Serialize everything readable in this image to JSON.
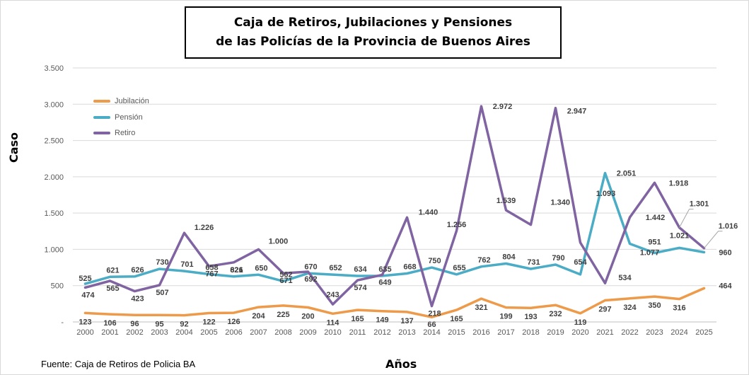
{
  "title": {
    "line1": "Caja de Retiros, Jubilaciones y Pensiones",
    "line2": "de las Policías de la Provincia de Buenos Aires"
  },
  "source": "Fuente: Caja de Retiros de Policia BA",
  "chart_data": {
    "type": "line",
    "title": "Caja de Retiros, Jubilaciones y Pensiones de las Policías de la Provincia de Buenos Aires",
    "xlabel": "Años",
    "ylabel": "Caso",
    "ylim": [
      0,
      3500
    ],
    "yticks": [
      0,
      500,
      1000,
      1500,
      2000,
      2500,
      3000,
      3500
    ],
    "ytick_labels": [
      "-",
      "500",
      "1.000",
      "1.500",
      "2.000",
      "2.500",
      "3.000",
      "3.500"
    ],
    "grid": true,
    "legend_position": "top-left",
    "categories": [
      "2000",
      "2001",
      "2002",
      "2003",
      "2004",
      "2005",
      "2006",
      "2007",
      "2008",
      "2009",
      "2010",
      "2011",
      "2012",
      "2013",
      "2014",
      "2015",
      "2016",
      "2017",
      "2018",
      "2019",
      "2020",
      "2021",
      "2022",
      "2023",
      "2024",
      "2025"
    ],
    "series": [
      {
        "name": "Jubilación",
        "color": "#ed9b4a",
        "values": [
          123,
          106,
          96,
          95,
          92,
          122,
          126,
          204,
          225,
          200,
          114,
          165,
          149,
          137,
          66,
          165,
          321,
          199,
          193,
          232,
          119,
          297,
          324,
          350,
          316,
          464
        ],
        "labels": [
          "123",
          "106",
          "96",
          "95",
          "92",
          "122",
          "126",
          "204",
          "225",
          "200",
          "114",
          "165",
          "149",
          "137",
          "66",
          "165",
          "321",
          "199",
          "193",
          "232",
          "119",
          "297",
          "324",
          "350",
          "316",
          "464"
        ]
      },
      {
        "name": "Pensión",
        "color": "#4bacc6",
        "values": [
          525,
          621,
          626,
          730,
          701,
          658,
          626,
          650,
          562,
          670,
          652,
          634,
          635,
          668,
          750,
          655,
          762,
          804,
          731,
          790,
          654,
          2051,
          1077,
          951,
          1021,
          960
        ],
        "labels": [
          "525",
          "621",
          "626",
          "730",
          "701",
          "658",
          "626",
          "650",
          "562",
          "670",
          "652",
          "634",
          "635",
          "668",
          "750",
          "655",
          "762",
          "804",
          "731",
          "790",
          "654",
          "2.051",
          "1.077",
          "951",
          "1.021",
          "960"
        ]
      },
      {
        "name": "Retiro",
        "color": "#8064a2",
        "values": [
          474,
          565,
          423,
          507,
          1226,
          767,
          821,
          1000,
          671,
          692,
          243,
          574,
          649,
          1440,
          218,
          1256,
          2972,
          1539,
          1340,
          2947,
          1093,
          534,
          1442,
          1918,
          1301,
          1016
        ],
        "labels": [
          "474",
          "565",
          "423",
          "507",
          "1.226",
          "767",
          "821",
          "1.000",
          "671",
          "692",
          "243",
          "574",
          "649",
          "1.440",
          "218",
          "1.256",
          "2.972",
          "1.539",
          "1.340",
          "2.947",
          "1.093",
          "534",
          "1.442",
          "1.918",
          "1.301",
          "1.016"
        ]
      }
    ]
  }
}
